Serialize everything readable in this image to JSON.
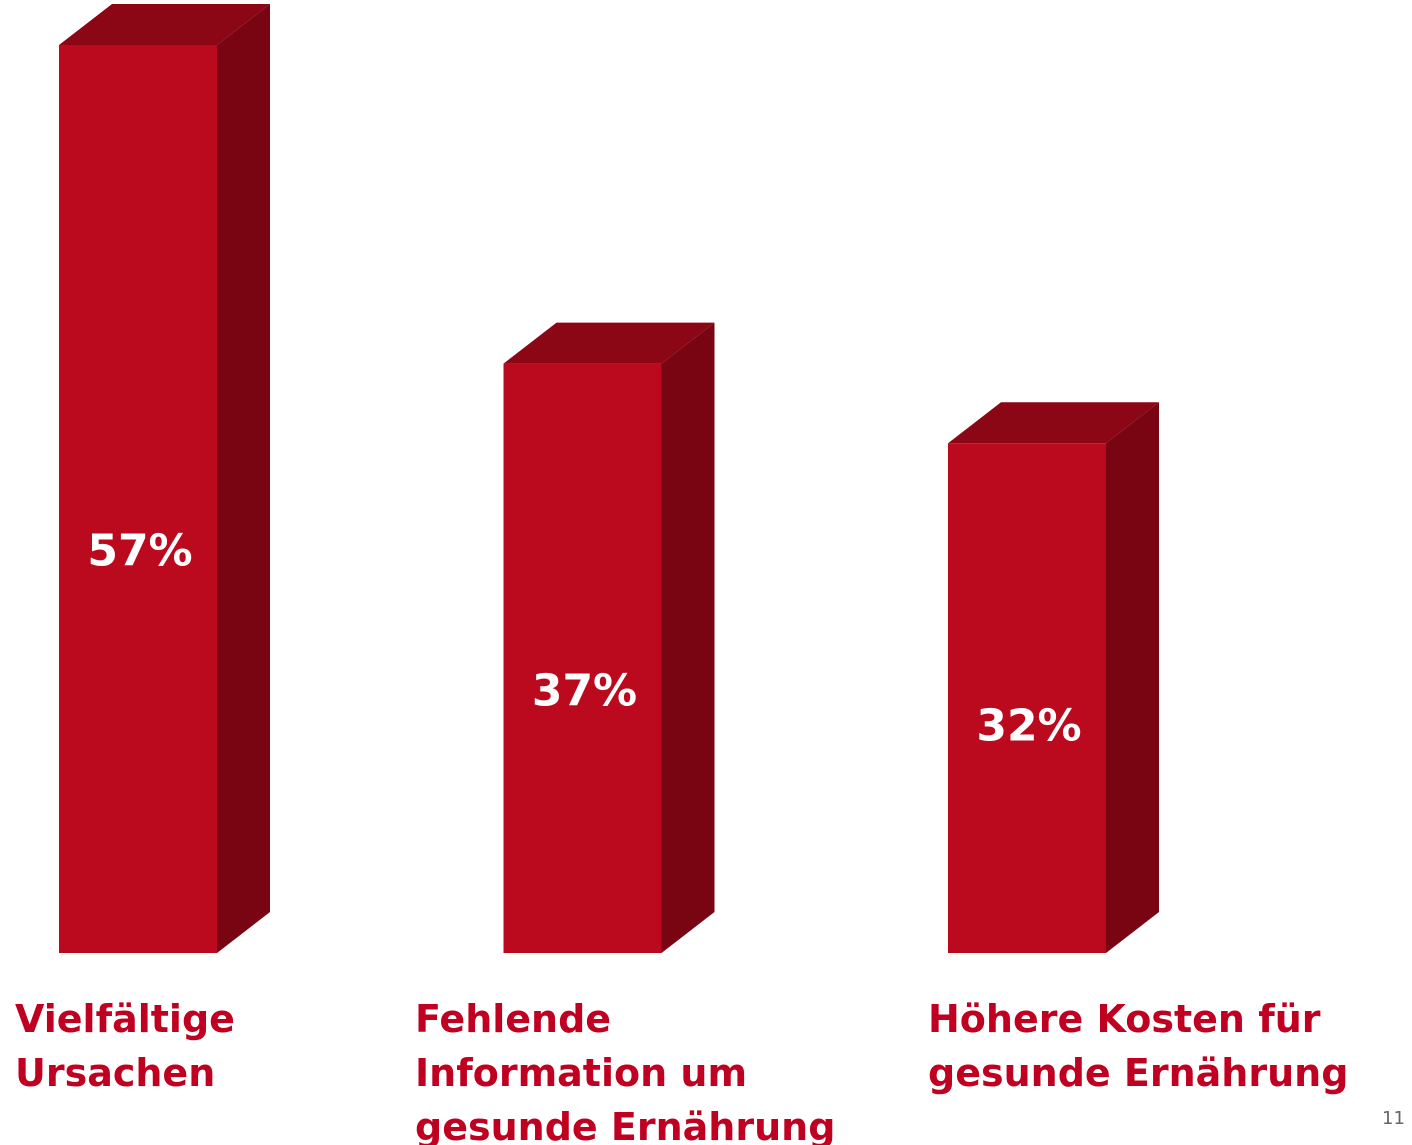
{
  "chart_data": {
    "type": "bar3d",
    "categories": [
      "Vielfältige\nUrsachen",
      "Fehlende\nInformation um\ngesunde Ernährung",
      "Höhere Kosten für\ngesunde Ernährung"
    ],
    "values": [
      57,
      37,
      32
    ],
    "value_labels": [
      "57%",
      "37%",
      "32%"
    ],
    "color": "#bb0a1e"
  },
  "page_number": "11"
}
